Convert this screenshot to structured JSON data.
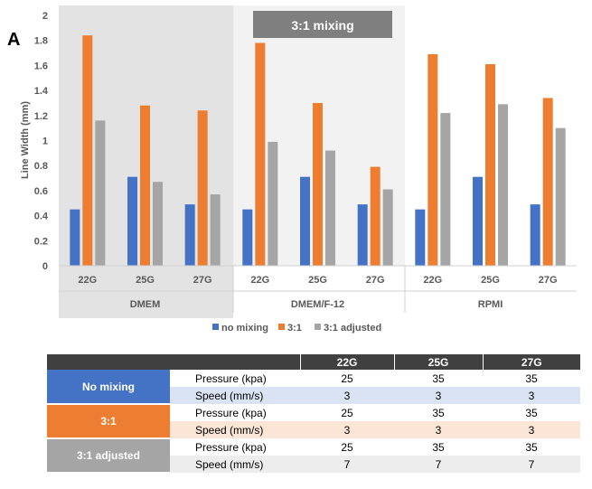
{
  "panel_label": "A",
  "annotation": "3:1 mixing",
  "colors": {
    "no_mixing": "#4472c4",
    "mix_3_1": "#ed7d31",
    "mix_3_1_adjusted": "#a5a5a5",
    "panel_dmem_bg": "#e3e3e3",
    "panel_f12_bg": "#f2f2f2",
    "annotation_bg": "#7f7f7f"
  },
  "chart_data": {
    "type": "bar",
    "ylabel": "Line Width (mm)",
    "xlabel": "",
    "ylim": [
      0,
      2
    ],
    "yticks": [
      "0",
      "0.2",
      "0.4",
      "0.6",
      "0.8",
      "1",
      "1.2",
      "1.4",
      "1.6",
      "1.8",
      "2"
    ],
    "groups": [
      "DMEM",
      "DMEM/F-12",
      "RPMI"
    ],
    "categories": [
      "22G",
      "25G",
      "27G",
      "22G",
      "25G",
      "27G",
      "22G",
      "25G",
      "27G"
    ],
    "series": [
      {
        "name": "no mixing",
        "values": [
          0.45,
          0.71,
          0.49,
          0.45,
          0.71,
          0.49,
          0.45,
          0.71,
          0.49
        ]
      },
      {
        "name": "3:1",
        "values": [
          1.84,
          1.28,
          1.24,
          1.78,
          1.3,
          0.79,
          1.69,
          1.61,
          1.34
        ]
      },
      {
        "name": "3:1 adjusted",
        "values": [
          1.16,
          0.67,
          0.57,
          0.99,
          0.92,
          0.61,
          1.22,
          1.29,
          1.1
        ]
      }
    ],
    "grid": false,
    "legend": "bottom"
  },
  "table": {
    "headers": [
      "",
      "",
      "22G",
      "25G",
      "27G"
    ],
    "groups": [
      {
        "label": "No mixing",
        "rows": [
          {
            "param": "Pressure (kpa)",
            "values": [
              "25",
              "35",
              "35"
            ]
          },
          {
            "param": "Speed (mm/s)",
            "values": [
              "3",
              "3",
              "3"
            ]
          }
        ]
      },
      {
        "label": "3:1",
        "rows": [
          {
            "param": "Pressure (kpa)",
            "values": [
              "25",
              "35",
              "35"
            ]
          },
          {
            "param": "Speed (mm/s)",
            "values": [
              "3",
              "3",
              "3"
            ]
          }
        ]
      },
      {
        "label": "3:1 adjusted",
        "rows": [
          {
            "param": "Pressure (kpa)",
            "values": [
              "25",
              "35",
              "35"
            ]
          },
          {
            "param": "Speed (mm/s)",
            "values": [
              "7",
              "7",
              "7"
            ]
          }
        ]
      }
    ]
  }
}
